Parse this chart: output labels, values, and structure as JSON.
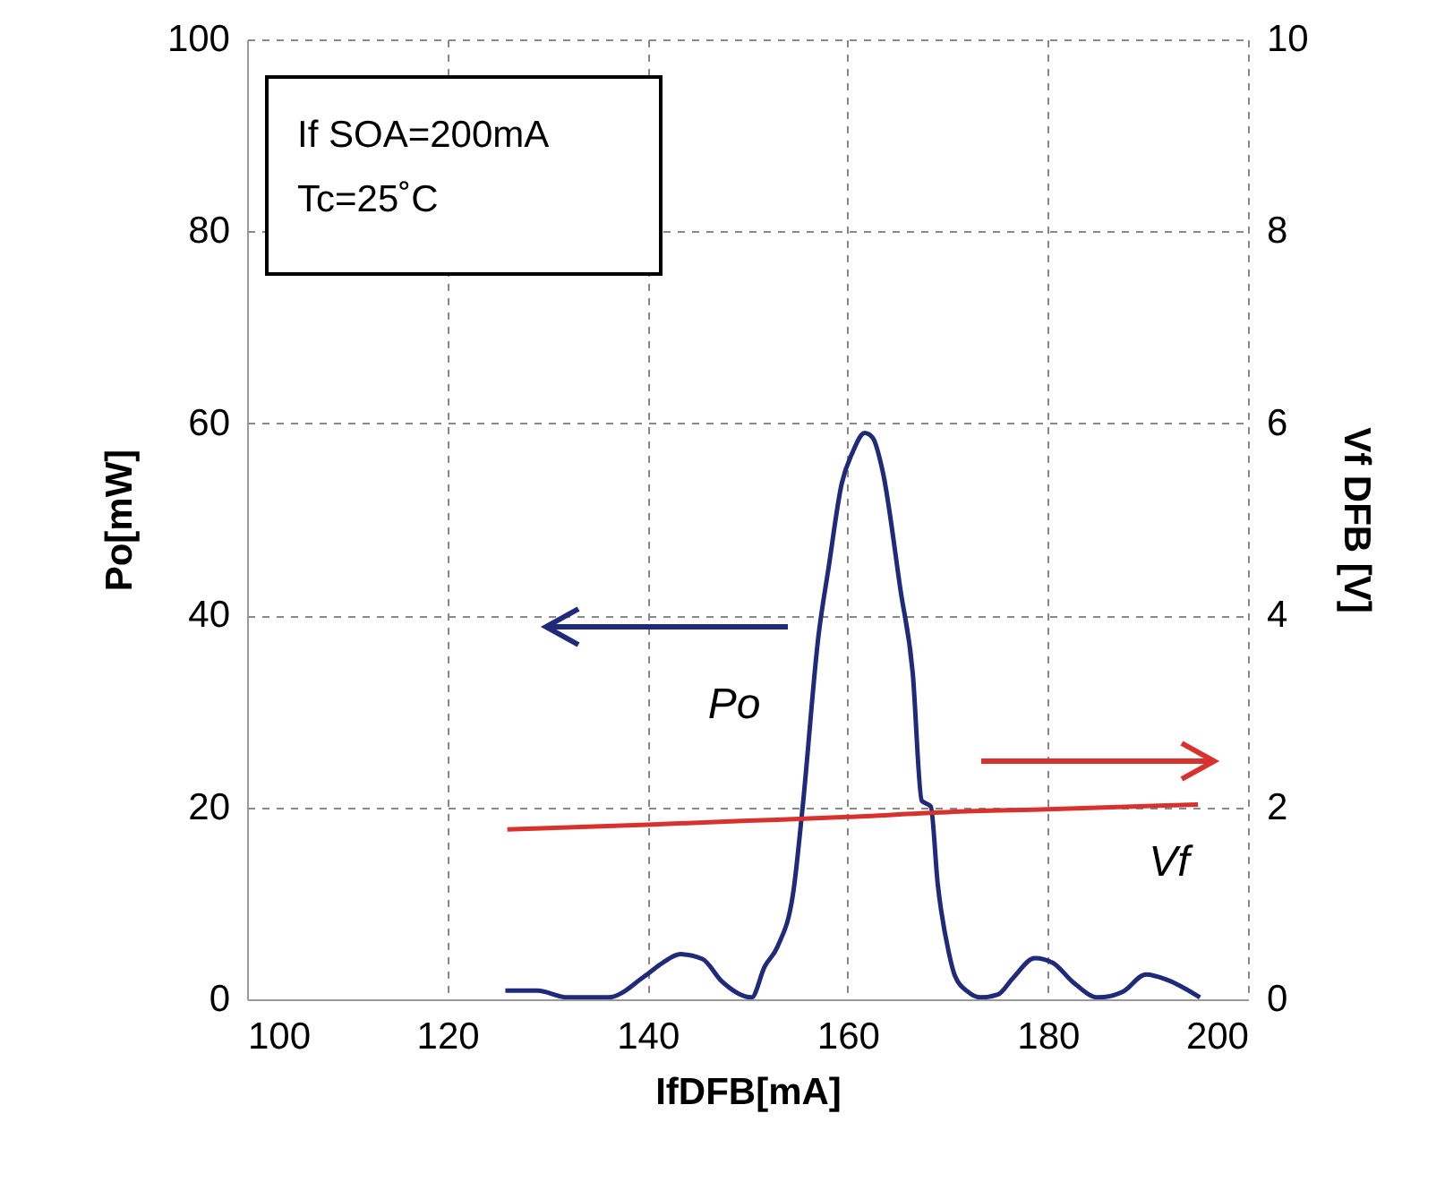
{
  "chart_data": {
    "type": "line",
    "xlabel": "IfDFB[mA]",
    "ylabel": "Po[mW]",
    "y2label": "Vf DFB [V]",
    "xlim": [
      100,
      200
    ],
    "xticks": [
      100,
      120,
      140,
      160,
      180,
      200
    ],
    "ylim": [
      0,
      100
    ],
    "yticks": [
      0,
      20,
      40,
      60,
      80,
      100
    ],
    "y2lim": [
      0,
      10
    ],
    "y2ticks": [
      0,
      2,
      4,
      6,
      8,
      10
    ],
    "grid": true,
    "annotations": [
      "If SOA=200mA",
      "Tc=25˚C"
    ],
    "series": [
      {
        "name": "Po",
        "color": "#1f2a7a",
        "x": [
          125.8,
          129,
          132,
          136.1,
          139.7,
          141.5,
          143.3,
          145.5,
          147.4,
          150.4,
          151.7,
          153,
          154.6,
          155.5,
          157.1,
          158.1,
          159.4,
          160.5,
          161.7,
          162.5,
          163.5,
          165.3,
          166.5,
          167.4,
          168.3,
          169,
          170.1,
          170.7,
          172,
          173.3,
          175,
          176.5,
          178.7,
          180.5,
          182.5,
          185,
          187.5,
          189.8,
          192,
          195.2
        ],
        "values": [
          0.9,
          0.9,
          0.2,
          0.2,
          2.4,
          3.8,
          4.7,
          4.2,
          1.9,
          0.2,
          3.4,
          5.5,
          11.4,
          20,
          38,
          45,
          53.7,
          57,
          59,
          58.5,
          55,
          42.5,
          34,
          20.7,
          20.1,
          12,
          4.9,
          2.5,
          0.8,
          0.2,
          0.5,
          2.2,
          4.3,
          3.8,
          1.8,
          0.2,
          0.8,
          2.6,
          2,
          0.2
        ]
      },
      {
        "name": "Vf",
        "color": "#d8322e",
        "axis": "y2",
        "x": [
          126,
          140,
          150,
          160,
          170,
          180,
          195
        ],
        "values": [
          1.77,
          1.82,
          1.86,
          1.9,
          1.95,
          1.98,
          2.03
        ]
      }
    ]
  }
}
